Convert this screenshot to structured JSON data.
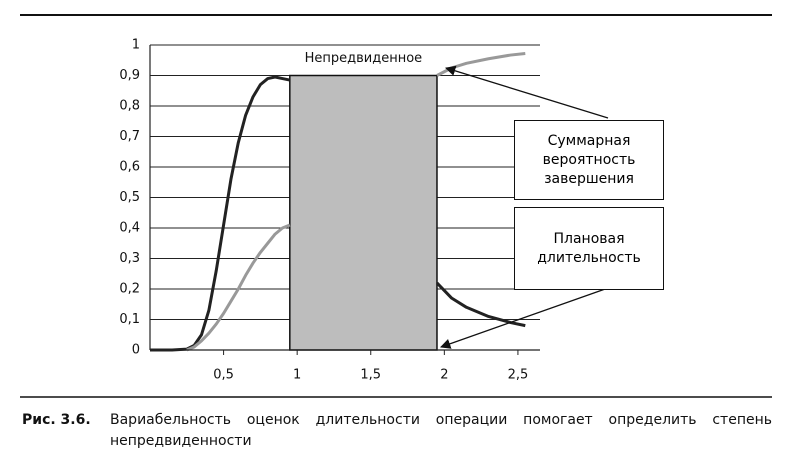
{
  "chart_data": {
    "type": "line",
    "x": [
      0,
      0.15,
      0.25,
      0.3,
      0.35,
      0.4,
      0.45,
      0.5,
      0.55,
      0.6,
      0.65,
      0.7,
      0.75,
      0.8,
      0.85,
      0.9,
      0.95,
      1.45,
      1.95,
      2.05,
      2.15,
      2.3,
      2.45,
      2.55
    ],
    "series": [
      {
        "color": "#222222",
        "values": [
          0,
          0,
          0.003,
          0.015,
          0.05,
          0.13,
          0.26,
          0.41,
          0.56,
          0.68,
          0.77,
          0.83,
          0.87,
          0.89,
          0.895,
          0.89,
          0.885,
          null,
          0.22,
          0.17,
          0.14,
          0.11,
          0.09,
          0.08
        ]
      },
      {
        "color": "#999999",
        "values": [
          null,
          null,
          0,
          0.01,
          0.03,
          0.055,
          0.085,
          0.12,
          0.16,
          0.2,
          0.245,
          0.285,
          0.32,
          0.35,
          0.38,
          0.4,
          0.41,
          null,
          0.9,
          0.925,
          0.94,
          0.955,
          0.967,
          0.972
        ]
      }
    ],
    "shaded_region": {
      "x": [
        0.95,
        1.95
      ],
      "y": [
        0,
        0.9
      ],
      "color": "#bdbdbd",
      "label": "Непредвиденное"
    },
    "annotations": [
      "Суммарная вероятность завершения",
      "Плановая длительность"
    ],
    "xlim": [
      0,
      2.65
    ],
    "xticks": [
      {
        "value": 0.5,
        "label": "0,5"
      },
      1,
      {
        "value": 1.5,
        "label": "1,5"
      },
      2,
      {
        "value": 2.5,
        "label": "2,5"
      }
    ],
    "ylim": [
      0,
      1
    ],
    "yticks": [
      0,
      {
        "value": 0.1,
        "label": "0,1"
      },
      {
        "value": 0.2,
        "label": "0,2"
      },
      {
        "value": 0.3,
        "label": "0,3"
      },
      {
        "value": 0.4,
        "label": "0,4"
      },
      {
        "value": 0.5,
        "label": "0,5"
      },
      {
        "value": 0.6,
        "label": "0,6"
      },
      {
        "value": 0.7,
        "label": "0,7"
      },
      {
        "value": 0.8,
        "label": "0,8"
      },
      {
        "value": 0.9,
        "label": "0,9"
      },
      1
    ],
    "grid": true,
    "caption": {
      "label": "Рис. 3.6.",
      "text": "Вариабельность оценок длительности операции помогает определить степень непредвиденности"
    }
  }
}
